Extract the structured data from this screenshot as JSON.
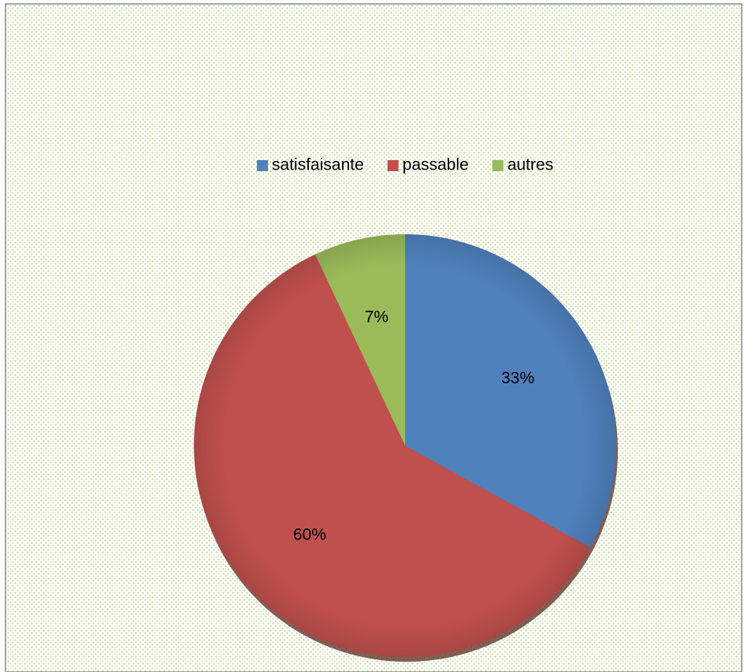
{
  "chart_data": {
    "type": "pie",
    "categories": [
      "satisfaisante",
      "passable",
      "autres"
    ],
    "values": [
      33,
      60,
      7
    ],
    "value_labels": [
      "33%",
      "60%",
      "7%"
    ],
    "colors": [
      "#4f81bd",
      "#c0504d",
      "#9bbb59"
    ],
    "legend": "top"
  }
}
